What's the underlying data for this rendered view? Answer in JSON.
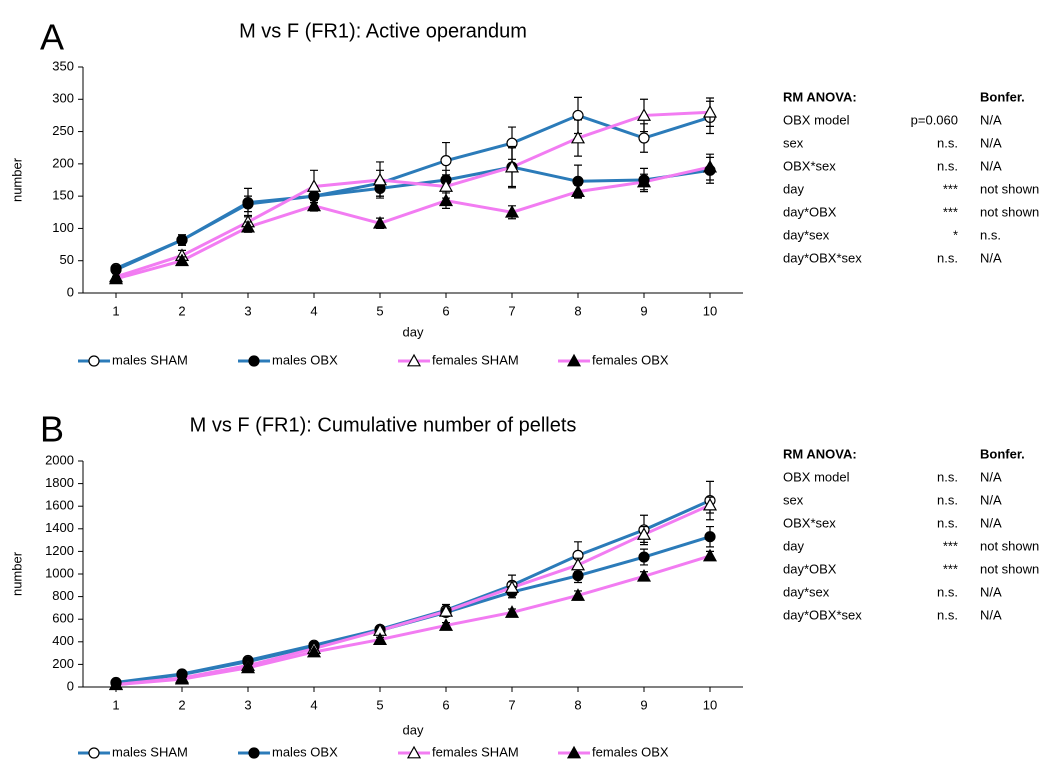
{
  "chart_data": [
    {
      "type": "line",
      "panel_label": "A",
      "title": "M vs F (FR1): Active operandum",
      "xlabel": "day",
      "ylabel": "number",
      "x": [
        1,
        2,
        3,
        4,
        5,
        6,
        7,
        8,
        9,
        10
      ],
      "xlim": [
        0.5,
        10.5
      ],
      "xticks": [
        1,
        2,
        3,
        4,
        5,
        6,
        7,
        8,
        9,
        10
      ],
      "ylim": [
        0,
        350
      ],
      "yticks": [
        0,
        50,
        100,
        150,
        200,
        250,
        300,
        350
      ],
      "legend": "bottom",
      "series": [
        {
          "name": "males SHAM",
          "color": "#2b7bb9",
          "marker": "open-circle",
          "values": [
            38,
            82,
            140,
            150,
            170,
            205,
            232,
            275,
            240,
            272
          ],
          "errors": [
            5,
            8,
            22,
            15,
            20,
            28,
            25,
            28,
            22,
            25
          ]
        },
        {
          "name": "males OBX",
          "color": "#2b7bb9",
          "marker": "filled-circle",
          "values": [
            36,
            82,
            138,
            150,
            162,
            175,
            195,
            173,
            175,
            190
          ],
          "errors": [
            5,
            8,
            12,
            10,
            12,
            15,
            32,
            25,
            18,
            20
          ]
        },
        {
          "name": "females SHAM",
          "color": "#f27cf2",
          "marker": "open-triangle",
          "values": [
            25,
            58,
            110,
            165,
            175,
            165,
            195,
            240,
            275,
            280
          ],
          "errors": [
            5,
            8,
            10,
            25,
            28,
            18,
            30,
            28,
            25,
            22
          ]
        },
        {
          "name": "females OBX",
          "color": "#f27cf2",
          "marker": "filled-triangle",
          "values": [
            22,
            50,
            102,
            135,
            108,
            143,
            125,
            157,
            172,
            195
          ],
          "errors": [
            4,
            6,
            8,
            8,
            8,
            12,
            10,
            10,
            12,
            20
          ]
        }
      ],
      "stats": {
        "heading": "RM ANOVA:",
        "bonfer_heading": "Bonfer.",
        "rows": [
          [
            "OBX model",
            "p=0.060",
            "N/A"
          ],
          [
            "sex",
            "n.s.",
            "N/A"
          ],
          [
            "OBX*sex",
            "n.s.",
            "N/A"
          ],
          [
            "day",
            "***",
            "not shown"
          ],
          [
            "day*OBX",
            "***",
            "not shown"
          ],
          [
            "day*sex",
            "*",
            "n.s."
          ],
          [
            "day*OBX*sex",
            "n.s.",
            "N/A"
          ]
        ]
      }
    },
    {
      "type": "line",
      "panel_label": "B",
      "title": "M vs F (FR1): Cumulative number of pellets",
      "xlabel": "day",
      "ylabel": "number",
      "x": [
        1,
        2,
        3,
        4,
        5,
        6,
        7,
        8,
        9,
        10
      ],
      "xlim": [
        0.5,
        10.5
      ],
      "xticks": [
        1,
        2,
        3,
        4,
        5,
        6,
        7,
        8,
        9,
        10
      ],
      "ylim": [
        0,
        2000
      ],
      "yticks": [
        0,
        200,
        400,
        600,
        800,
        1000,
        1200,
        1400,
        1600,
        1800,
        2000
      ],
      "legend": "bottom",
      "series": [
        {
          "name": "males SHAM",
          "color": "#2b7bb9",
          "marker": "open-circle",
          "values": [
            40,
            115,
            235,
            370,
            510,
            680,
            900,
            1165,
            1390,
            1650
          ],
          "errors": [
            5,
            10,
            15,
            20,
            30,
            50,
            90,
            120,
            130,
            170
          ]
        },
        {
          "name": "males OBX",
          "color": "#2b7bb9",
          "marker": "filled-circle",
          "values": [
            35,
            110,
            225,
            360,
            500,
            660,
            840,
            985,
            1150,
            1330
          ],
          "errors": [
            5,
            10,
            15,
            20,
            30,
            35,
            50,
            60,
            70,
            90
          ]
        },
        {
          "name": "females SHAM",
          "color": "#f27cf2",
          "marker": "open-triangle",
          "values": [
            22,
            80,
            190,
            340,
            500,
            670,
            880,
            1080,
            1350,
            1610
          ],
          "errors": [
            5,
            10,
            15,
            20,
            30,
            40,
            50,
            60,
            70,
            70
          ]
        },
        {
          "name": "females OBX",
          "color": "#f27cf2",
          "marker": "filled-triangle",
          "values": [
            20,
            70,
            170,
            310,
            420,
            545,
            660,
            810,
            980,
            1160
          ],
          "errors": [
            4,
            8,
            12,
            18,
            20,
            25,
            30,
            40,
            40,
            40
          ]
        }
      ],
      "stats": {
        "heading": "RM ANOVA:",
        "bonfer_heading": "Bonfer.",
        "rows": [
          [
            "OBX model",
            "n.s.",
            "N/A"
          ],
          [
            "sex",
            "n.s.",
            "N/A"
          ],
          [
            "OBX*sex",
            "n.s.",
            "N/A"
          ],
          [
            "day",
            "***",
            "not shown"
          ],
          [
            "day*OBX",
            "***",
            "not shown"
          ],
          [
            "day*sex",
            "n.s.",
            "N/A"
          ],
          [
            "day*OBX*sex",
            "n.s.",
            "N/A"
          ]
        ]
      }
    }
  ]
}
